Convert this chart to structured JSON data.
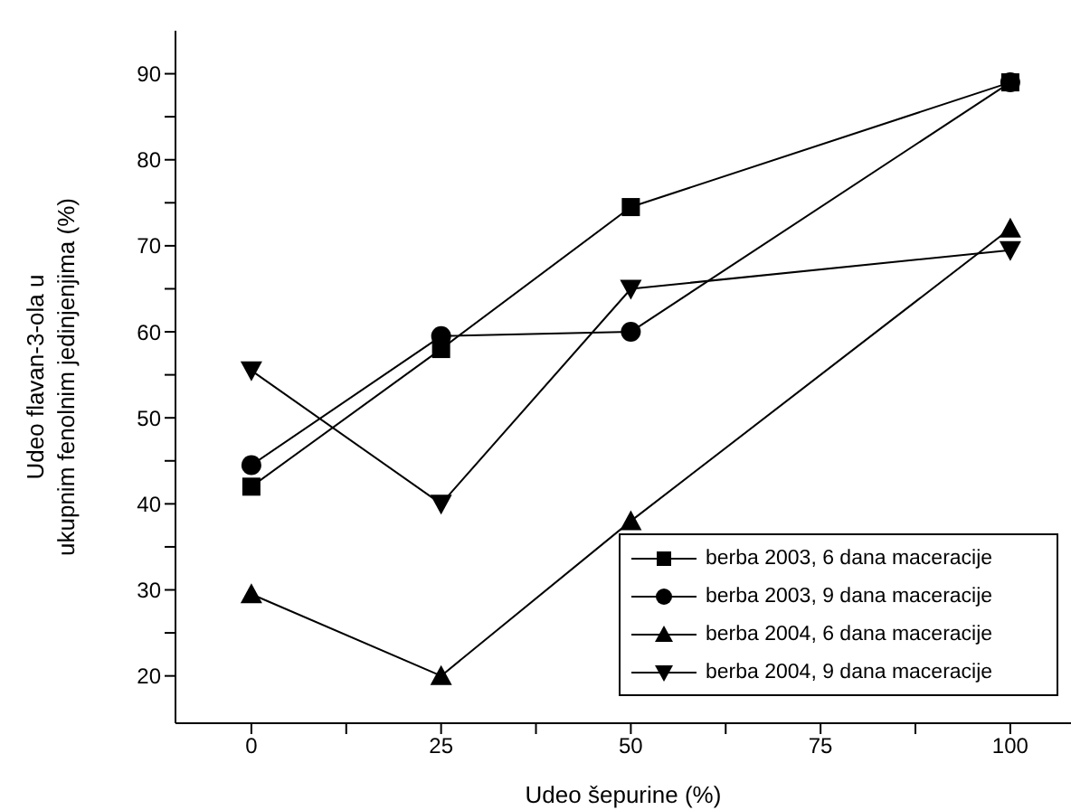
{
  "chart_data": {
    "type": "line",
    "xlabel": "Udeo šepurine (%)",
    "ylabel": "Udeo flavan-3-ola u\nukupnim fenolnim jedinjenjima (%)",
    "x": [
      0,
      25,
      50,
      100
    ],
    "series": [
      {
        "name": "berba 2003, 6 dana maceracije",
        "color": "#000000",
        "marker": "square",
        "values": [
          42,
          58,
          74.5,
          89
        ]
      },
      {
        "name": "berba 2003, 9 dana maceracije",
        "color": "#000000",
        "marker": "circle",
        "values": [
          44.5,
          59.5,
          60,
          89
        ]
      },
      {
        "name": "berba 2004, 6 dana maceracije",
        "color": "#000000",
        "marker": "triangle",
        "values": [
          29.5,
          20,
          38,
          72
        ]
      },
      {
        "name": "berba 2004, 9 dana maceracije",
        "color": "#000000",
        "marker": "triangle-down",
        "values": [
          55.5,
          40,
          65,
          69.5
        ]
      }
    ],
    "xlim": [
      -10,
      108
    ],
    "xticks": [
      0,
      {
        "value": 12.5,
        "label": null
      },
      25,
      {
        "value": 37.5,
        "label": null
      },
      50,
      {
        "value": 62.5,
        "label": null
      },
      75,
      {
        "value": 87.5,
        "label": null
      },
      100
    ],
    "ylim": [
      14.5,
      95
    ],
    "yticks": [
      20,
      {
        "value": 25,
        "label": null
      },
      30,
      {
        "value": 35,
        "label": null
      },
      40,
      {
        "value": 45,
        "label": null
      },
      50,
      {
        "value": 55,
        "label": null
      },
      60,
      {
        "value": 65,
        "label": null
      },
      70,
      {
        "value": 75,
        "label": null
      },
      80,
      {
        "value": 85,
        "label": null
      },
      90
    ],
    "grid": false,
    "legend": "bottom right",
    "line_style": "solid"
  }
}
